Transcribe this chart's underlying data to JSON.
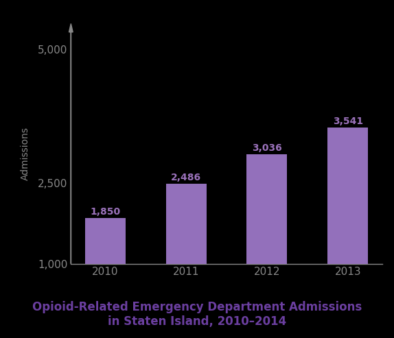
{
  "categories": [
    "2010",
    "2011",
    "2012",
    "2013"
  ],
  "values": [
    1850,
    2486,
    3036,
    3541
  ],
  "bar_color": "#9370BB",
  "background_color": "#000000",
  "text_color": "#888888",
  "label_color": "#9B72BB",
  "title_line1": "Opioid-Related Emergency Department Admissions",
  "title_line2": "in Staten Island, 2010–2014",
  "title_color": "#6B3FA0",
  "ylabel": "Admissions",
  "ylabel_color": "#888888",
  "ylim_min": 1000,
  "ylim_max": 5000,
  "yticks": [
    1000,
    2500,
    5000
  ],
  "bar_width": 0.5,
  "value_labels": [
    "1,850",
    "2,486",
    "3,036",
    "3,541"
  ],
  "axis_color": "#888888",
  "tick_color": "#888888",
  "title_fontsize": 12,
  "label_fontsize": 10,
  "ylabel_fontsize": 10,
  "tick_fontsize": 11
}
